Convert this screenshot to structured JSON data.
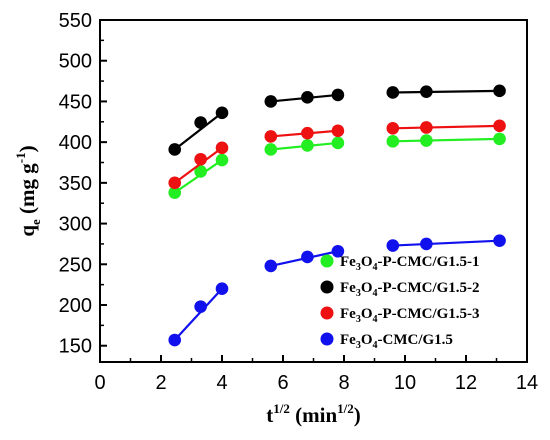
{
  "chart_data": {
    "type": "scatter",
    "xlabel": {
      "main": "t",
      "sup": "1/2",
      "unit_open": " (min",
      "unit_sup": "1/2",
      "unit_close": ")"
    },
    "ylabel": {
      "main": "q",
      "sub": "e",
      "unit_open": " (mg g",
      "unit_sup": "-1",
      "unit_close": ")"
    },
    "xlim": [
      0,
      14
    ],
    "ylim": [
      130,
      550
    ],
    "xticks": [
      0,
      2,
      4,
      6,
      8,
      10,
      12,
      14
    ],
    "yticks": [
      150,
      200,
      250,
      300,
      350,
      400,
      450,
      500,
      550
    ],
    "legend_position": "lower-right",
    "series": [
      {
        "name": "Fe3O4-P-CMC/G1.5-1",
        "name_parts": [
          [
            "Fe",
            "n"
          ],
          [
            "3",
            "sub"
          ],
          [
            "O",
            "n"
          ],
          [
            "4",
            "sub"
          ],
          [
            "-P-CMC/G1.5-1",
            "n"
          ]
        ],
        "color": "#22ee22",
        "points": [
          [
            2.45,
            338
          ],
          [
            3.3,
            364
          ],
          [
            4.0,
            378
          ],
          [
            5.6,
            391
          ],
          [
            6.8,
            396
          ],
          [
            7.8,
            399
          ],
          [
            9.6,
            401
          ],
          [
            10.7,
            402
          ],
          [
            13.1,
            404
          ]
        ],
        "segments": [
          [
            0,
            2
          ],
          [
            3,
            5
          ],
          [
            6,
            8
          ]
        ]
      },
      {
        "name": "Fe3O4-P-CMC/G1.5-2",
        "name_parts": [
          [
            "Fe",
            "n"
          ],
          [
            "3",
            "sub"
          ],
          [
            "O",
            "n"
          ],
          [
            "4",
            "sub"
          ],
          [
            "-P-CMC/G1.5-2",
            "n"
          ]
        ],
        "color": "#000000",
        "points": [
          [
            2.45,
            391
          ],
          [
            3.3,
            424
          ],
          [
            4.0,
            436
          ],
          [
            5.6,
            450
          ],
          [
            6.8,
            455
          ],
          [
            7.8,
            458
          ],
          [
            9.6,
            461
          ],
          [
            10.7,
            462
          ],
          [
            13.1,
            463
          ]
        ],
        "segments": [
          [
            0,
            2
          ],
          [
            3,
            5
          ],
          [
            6,
            8
          ]
        ]
      },
      {
        "name": "Fe3O4-P-CMC/G1.5-3",
        "name_parts": [
          [
            "Fe",
            "n"
          ],
          [
            "3",
            "sub"
          ],
          [
            "O",
            "n"
          ],
          [
            "4",
            "sub"
          ],
          [
            "-P-CMC/G1.5-3",
            "n"
          ]
        ],
        "color": "#ee1111",
        "points": [
          [
            2.45,
            350
          ],
          [
            3.3,
            379
          ],
          [
            4.0,
            393
          ],
          [
            5.6,
            407
          ],
          [
            6.8,
            411
          ],
          [
            7.8,
            414
          ],
          [
            9.6,
            417
          ],
          [
            10.7,
            418
          ],
          [
            13.1,
            420
          ]
        ],
        "segments": [
          [
            0,
            2
          ],
          [
            3,
            5
          ],
          [
            6,
            8
          ]
        ]
      },
      {
        "name": "Fe3O4-CMC/G1.5",
        "name_parts": [
          [
            "Fe",
            "n"
          ],
          [
            "3",
            "sub"
          ],
          [
            "O",
            "n"
          ],
          [
            "4",
            "sub"
          ],
          [
            "-CMC/G1.5",
            "n"
          ]
        ],
        "color": "#1111ee",
        "points": [
          [
            2.45,
            157
          ],
          [
            3.3,
            198
          ],
          [
            4.0,
            220
          ],
          [
            5.6,
            248
          ],
          [
            6.8,
            259
          ],
          [
            7.8,
            266
          ],
          [
            9.6,
            273
          ],
          [
            10.7,
            275
          ],
          [
            13.1,
            279
          ]
        ],
        "segments": [
          [
            0,
            2
          ],
          [
            3,
            5
          ],
          [
            6,
            8
          ]
        ]
      }
    ]
  }
}
